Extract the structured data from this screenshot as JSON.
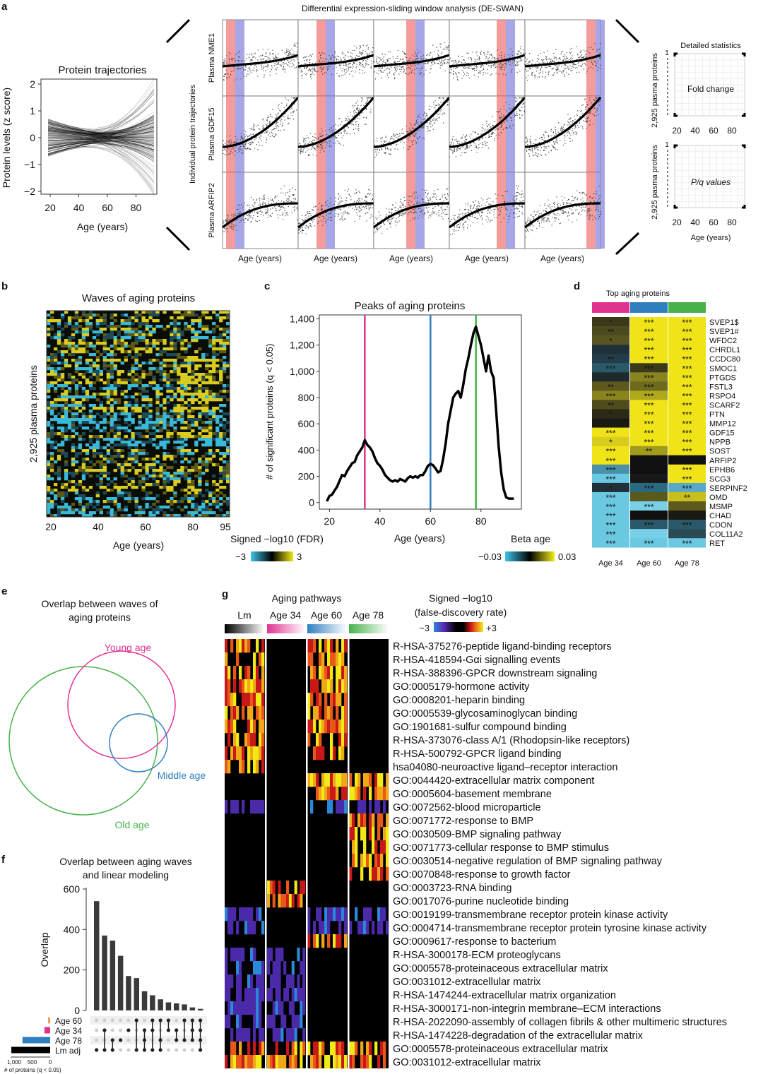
{
  "colors": {
    "magenta": "#e0338f",
    "blue": "#2f7fc0",
    "green": "#46b24a",
    "yellow": "#f2ea16",
    "cyan": "#3ec5e8",
    "red_band": "#f07a7a",
    "blue_band": "#8a8ae0"
  },
  "panel_letters": {
    "a": "a",
    "b": "b",
    "c": "c",
    "d": "d",
    "e": "e",
    "f": "f",
    "g": "g"
  },
  "a": {
    "traj_title": "Protein trajectories",
    "traj_ylabel": "Protein levels (z score)",
    "traj_xlabel": "Age (years)",
    "traj_xticks": [
      "20",
      "40",
      "60",
      "80"
    ],
    "traj_yticks": [
      "2",
      "1",
      "0",
      "−1",
      "−2"
    ],
    "deswan_title": "Differential expression-sliding window analysis (DE-SWAN)",
    "deswan_ylabel": "Individual protein trajectories",
    "row_labels": [
      "Plasma NME1",
      "Plasma GDF15",
      "Plasma ARFIP2"
    ],
    "col_xlabel": "Age (years)",
    "detail_title": "Detailed statistics",
    "detail_ylabel": "2,925 pasma proteins",
    "detail_box1": "Fold change",
    "detail_box2": "P/q values",
    "detail_xticks": [
      "20",
      "40",
      "60",
      "80"
    ],
    "detail_y_one": "1",
    "detail_xlabel": "Age (years)"
  },
  "b": {
    "title": "Waves of aging proteins",
    "ylabel": "2,925 plasma proteins",
    "xlabel": "Age (years)",
    "xticks": [
      "20",
      "40",
      "60",
      "80",
      "95"
    ],
    "legend_title": "Signed −log10 (FDR)",
    "legend_min": "−3",
    "legend_max": "3"
  },
  "d": {
    "title": "Top aging proteins",
    "col_labels": [
      "Age 34",
      "Age 60",
      "Age 78"
    ],
    "legend_title": "Beta age",
    "legend_min": "−0.03",
    "legend_max": "0.03",
    "rows": [
      {
        "name": "SVEP1$",
        "stars": [
          "*",
          "***",
          "***"
        ],
        "colors": [
          "#3a3a1a",
          "#f0e418",
          "#f0e418"
        ]
      },
      {
        "name": "SVEP1#",
        "stars": [
          "**",
          "***",
          "***"
        ],
        "colors": [
          "#4a4a1e",
          "#f0e418",
          "#f0e418"
        ]
      },
      {
        "name": "WFDC2",
        "stars": [
          "*",
          "***",
          "***"
        ],
        "colors": [
          "#58561e",
          "#f0e418",
          "#f0e418"
        ]
      },
      {
        "name": "CHRDL1",
        "stars": [
          "",
          "***",
          "***"
        ],
        "colors": [
          "#203038",
          "#f0e418",
          "#f0e418"
        ]
      },
      {
        "name": "CCDC80",
        "stars": [
          "**",
          "***",
          "***"
        ],
        "colors": [
          "#233d4a",
          "#f0e418",
          "#f0e418"
        ]
      },
      {
        "name": "SMOC1",
        "stars": [
          "***",
          "***",
          "***"
        ],
        "colors": [
          "#2a5a6a",
          "#3a3a1a",
          "#f0e418"
        ]
      },
      {
        "name": "PTGDS",
        "stars": [
          "",
          "***",
          "***"
        ],
        "colors": [
          "#1e2a2c",
          "#8a8420",
          "#f0e418"
        ]
      },
      {
        "name": "FSTL3",
        "stars": [
          "**",
          "***",
          "***"
        ],
        "colors": [
          "#5e5a1e",
          "#6e6a1e",
          "#f0e418"
        ]
      },
      {
        "name": "RSPO4",
        "stars": [
          "***",
          "***",
          "***"
        ],
        "colors": [
          "#8a841e",
          "#b0a81c",
          "#f0e418"
        ]
      },
      {
        "name": "SCARF2",
        "stars": [
          "**",
          "***",
          "***"
        ],
        "colors": [
          "#4e4c1c",
          "#f0e418",
          "#f0e418"
        ]
      },
      {
        "name": "PTN",
        "stars": [
          "*",
          "***",
          "***"
        ],
        "colors": [
          "#2a2a16",
          "#f0e418",
          "#f0e418"
        ]
      },
      {
        "name": "MMP12",
        "stars": [
          "",
          "***",
          "***"
        ],
        "colors": [
          "#1a1a12",
          "#f0e418",
          "#f0e418"
        ]
      },
      {
        "name": "GDF15",
        "stars": [
          "***",
          "***",
          "***"
        ],
        "colors": [
          "#f0e418",
          "#f0e418",
          "#f0e418"
        ]
      },
      {
        "name": "NPPB",
        "stars": [
          "*",
          "***",
          "***"
        ],
        "colors": [
          "#d8cc1c",
          "#f0e418",
          "#f0e418"
        ]
      },
      {
        "name": "SOST",
        "stars": [
          "***",
          "**",
          "***"
        ],
        "colors": [
          "#f0e418",
          "#a09a1e",
          "#f0e418"
        ]
      },
      {
        "name": "ARFIP2",
        "stars": [
          "***",
          "",
          ""
        ],
        "colors": [
          "#f0e418",
          "#101010",
          "#101010"
        ]
      },
      {
        "name": "EPHB6",
        "stars": [
          "***",
          "",
          "***"
        ],
        "colors": [
          "#4a90a8",
          "#101010",
          "#f0e418"
        ]
      },
      {
        "name": "SCG3",
        "stars": [
          "***",
          "",
          "***"
        ],
        "colors": [
          "#6ac8e0",
          "#181818",
          "#f0e418"
        ]
      },
      {
        "name": "SERPINF2",
        "stars": [
          "*",
          "***",
          "***"
        ],
        "colors": [
          "#203038",
          "#2a6a80",
          "#5aa8c8"
        ]
      },
      {
        "name": "OMD",
        "stars": [
          "***",
          "",
          "**"
        ],
        "colors": [
          "#6ac8e0",
          "#5a5a1e",
          "#c8be1c"
        ]
      },
      {
        "name": "MSMP",
        "stars": [
          "***",
          "***",
          ""
        ],
        "colors": [
          "#6ac8e0",
          "#78d0e8",
          "#5e5a1e"
        ]
      },
      {
        "name": "CHAD",
        "stars": [
          "***",
          "",
          ""
        ],
        "colors": [
          "#6ac8e0",
          "#101010",
          "#1a1a14"
        ]
      },
      {
        "name": "CDON",
        "stars": [
          "***",
          "***",
          "***"
        ],
        "colors": [
          "#6ac8e0",
          "#2a5a6a",
          "#2a5a6a"
        ]
      },
      {
        "name": "COL11A2",
        "stars": [
          "***",
          "",
          ""
        ],
        "colors": [
          "#6ac8e0",
          "#78d0e8",
          "#2a4a54"
        ]
      },
      {
        "name": "RET",
        "stars": [
          "***",
          "***",
          "***"
        ],
        "colors": [
          "#6ac8e0",
          "#6ac8e0",
          "#6ac8e0"
        ]
      }
    ]
  },
  "e": {
    "title_line1": "Overlap between waves of",
    "title_line2": "aging proteins",
    "labels": [
      "Young age",
      "Middle age",
      "Old age"
    ]
  },
  "f": {
    "title_line1": "Overlap between aging waves",
    "title_line2": "and linear modeling",
    "ylabel": "Overlap",
    "yticks": [
      "600",
      "400",
      "200",
      "0"
    ],
    "set_labels": [
      "Age 60",
      "Age 34",
      "Age 78",
      "Lm adj"
    ],
    "set_xticks": [
      "1,000",
      "500",
      "0"
    ],
    "set_xlabel": "# of proteins (q < 0.05)"
  },
  "g": {
    "title": "Aging pathways",
    "col_labels": [
      "Lm",
      "Age 34",
      "Age 60",
      "Age 78"
    ],
    "legend_title_line1": "Signed −log10",
    "legend_title_line2": "(false-discovery rate)",
    "legend_min": "−3",
    "legend_max": "+3",
    "rows": [
      "R-HSA-375276-peptide ligand-binding receptors",
      "R-HSA-418594-Gαi signalling events",
      "R-HSA-388396-GPCR downstream signaling",
      "GO:0005179-hormone activity",
      "GO:0008201-heparin binding",
      "GO:0005539-glycosaminoglycan binding",
      "GO:1901681-sulfur compound binding",
      "R-HSA-373076-class A/1 (Rhodopsin-like receptors)",
      "R-HSA-500792-GPCR ligand binding",
      "hsa04080-neuroactive ligand–receptor interaction",
      "GO:0044420-extracellular matrix component",
      "GO:0005604-basement membrane",
      "GO:0072562-blood microparticle",
      "GO:0071772-response to BMP",
      "GO:0030509-BMP signaling pathway",
      "GO:0071773-cellular response to BMP stimulus",
      "GO:0030514-negative regulation of BMP signaling pathway",
      "GO:0070848-response to growth factor",
      "GO:0003723-RNA binding",
      "GO:0017076-purine nucleotide binding",
      "GO:0019199-transmembrane receptor protein kinase activity",
      "GO:0004714-transmembrane receptor protein tyrosine kinase activity",
      "GO:0009617-response to bacterium",
      "R-HSA-3000178-ECM proteoglycans",
      "GO:0005578-proteinaceous extracellular matrix",
      "GO:0031012-extracellular matrix",
      "R-HSA-1474244-extracellular matrix organization",
      "R-HSA-3000171-non-integrin membrane–ECM interactions",
      "R-HSA-2022090-assembly of collagen fibrils & other multimeric structures",
      "R-HSA-1474228-degradation of the extracellular matrix",
      "GO:0005578-proteinaceous extracellular matrix",
      "GO:0031012-extracellular matrix"
    ]
  },
  "chart_data": [
    {
      "type": "line",
      "title": "Peaks of aging proteins",
      "xlabel": "Age (years)",
      "ylabel": "# of significant proteins (q < 0.05)",
      "xlim": [
        16,
        96
      ],
      "ylim": [
        -50,
        1430
      ],
      "xticks": [
        "20",
        "40",
        "60",
        "80"
      ],
      "yticks": [
        "0",
        "200",
        "400",
        "600",
        "800",
        "1,000",
        "1,200",
        "1,400"
      ],
      "x": [
        19,
        20,
        21,
        22,
        23,
        24,
        25,
        26,
        27,
        28,
        29,
        30,
        31,
        32,
        33,
        34,
        35,
        36,
        37,
        38,
        39,
        40,
        41,
        42,
        43,
        44,
        45,
        46,
        47,
        48,
        49,
        50,
        51,
        52,
        53,
        54,
        55,
        56,
        57,
        58,
        59,
        60,
        61,
        62,
        63,
        64,
        65,
        66,
        67,
        68,
        69,
        70,
        71,
        72,
        73,
        74,
        75,
        76,
        77,
        78,
        79,
        80,
        81,
        82,
        83,
        84,
        85,
        86,
        87,
        88,
        89,
        90,
        91,
        92,
        93
      ],
      "series": [
        {
          "values": [
            10,
            50,
            60,
            90,
            120,
            165,
            210,
            200,
            240,
            270,
            300,
            310,
            360,
            390,
            420,
            475,
            440,
            420,
            390,
            340,
            300,
            280,
            250,
            210,
            190,
            170,
            160,
            170,
            160,
            180,
            170,
            160,
            185,
            200,
            190,
            200,
            190,
            210,
            210,
            240,
            280,
            295,
            285,
            260,
            230,
            240,
            330,
            450,
            600,
            700,
            800,
            830,
            850,
            800,
            900,
            1020,
            1100,
            1200,
            1290,
            1340,
            1270,
            1200,
            1100,
            1000,
            1120,
            1000,
            950,
            700,
            430,
            230,
            100,
            40,
            30,
            30,
            30
          ]
        }
      ],
      "vlines": [
        {
          "x": 34,
          "color": "#e0338f"
        },
        {
          "x": 60,
          "color": "#2f7fc0"
        },
        {
          "x": 78,
          "color": "#46b24a"
        }
      ]
    },
    {
      "type": "bar",
      "title": "Overlap between aging waves and linear modeling",
      "ylabel": "Overlap",
      "ylim": [
        0,
        600
      ],
      "categories": [
        "1",
        "2",
        "3",
        "4",
        "5",
        "6",
        "7",
        "8",
        "9",
        "10",
        "11",
        "12",
        "13",
        "14"
      ],
      "values": [
        540,
        370,
        345,
        270,
        170,
        160,
        95,
        75,
        55,
        40,
        35,
        30,
        15,
        8
      ],
      "set_sizes": [
        {
          "name": "Age 60",
          "value": 60
        },
        {
          "name": "Age 34",
          "value": 160
        },
        {
          "name": "Age 78",
          "value": 770
        },
        {
          "name": "Lm adj",
          "value": 1080
        }
      ]
    }
  ]
}
